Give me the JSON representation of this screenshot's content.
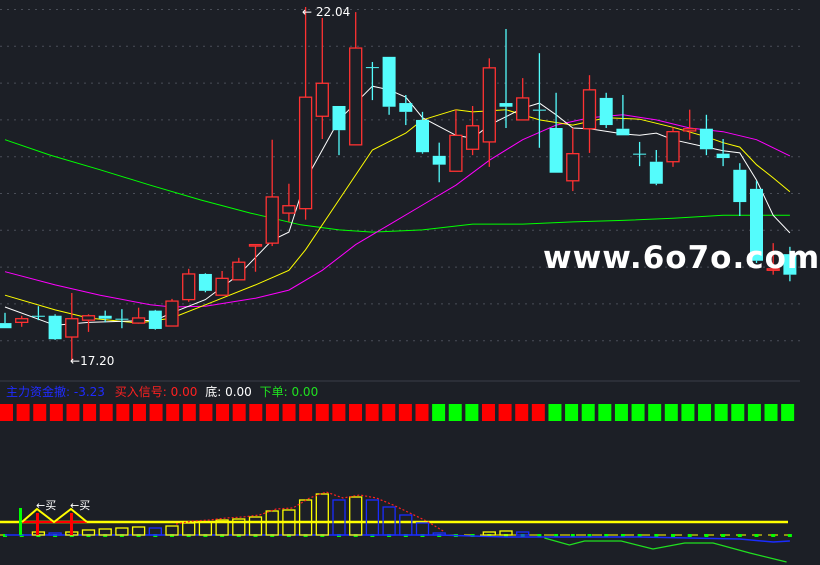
{
  "colors": {
    "background": "#1c1f26",
    "up": "#ff3232",
    "down": "#54fcfc",
    "ma5": "#ffffff",
    "ma10": "#ffff00",
    "ma20": "#ff00ff",
    "ma60": "#00ff00",
    "grid": "#4a4e58"
  },
  "price_labels": {
    "high": "22.04",
    "low": "17.20",
    "high_arrow": "←",
    "low_arrow": "←"
  },
  "watermark": "www.6o7o.com",
  "indicator_legend": {
    "fund_withdraw_label": "主力资金撤:",
    "fund_withdraw_value": "-3.23",
    "buy_signal_label": "买入信号:",
    "buy_signal_value": "0.00",
    "bottom_label": "底:",
    "bottom_value": "0.00",
    "order_label": "下单:",
    "order_value": "0.00"
  },
  "buy_marks": [
    "买",
    "买"
  ],
  "chart_data": {
    "type": "candlestick",
    "candles": [
      [
        17.73,
        17.87,
        17.66,
        17.66
      ],
      [
        17.74,
        17.83,
        17.68,
        17.79
      ],
      [
        17.83,
        17.96,
        17.77,
        17.82
      ],
      [
        17.83,
        17.85,
        17.5,
        17.51
      ],
      [
        17.54,
        18.14,
        17.2,
        17.79
      ],
      [
        17.77,
        17.85,
        17.61,
        17.83
      ],
      [
        17.83,
        17.9,
        17.74,
        17.79
      ],
      [
        17.79,
        17.92,
        17.66,
        17.78
      ],
      [
        17.73,
        17.94,
        17.73,
        17.8
      ],
      [
        17.9,
        17.91,
        17.64,
        17.65
      ],
      [
        17.69,
        18.06,
        17.69,
        18.03
      ],
      [
        18.05,
        18.47,
        18.02,
        18.4
      ],
      [
        18.4,
        18.41,
        18.15,
        18.17
      ],
      [
        18.11,
        18.44,
        18.11,
        18.34
      ],
      [
        18.32,
        18.62,
        18.32,
        18.56
      ],
      [
        18.78,
        18.8,
        18.43,
        18.8
      ],
      [
        18.82,
        20.23,
        18.78,
        19.45
      ],
      [
        19.23,
        19.63,
        19.11,
        19.33
      ],
      [
        19.29,
        22.04,
        19.14,
        20.81
      ],
      [
        20.55,
        21.89,
        20.24,
        21.0
      ],
      [
        20.69,
        20.69,
        20.02,
        20.36
      ],
      [
        20.16,
        21.97,
        20.16,
        21.48
      ],
      [
        21.22,
        21.29,
        20.77,
        21.21
      ],
      [
        21.36,
        21.36,
        20.57,
        20.68
      ],
      [
        20.73,
        20.84,
        20.43,
        20.61
      ],
      [
        20.5,
        20.61,
        20.04,
        20.06
      ],
      [
        20.01,
        20.19,
        19.65,
        19.89
      ],
      [
        19.8,
        20.64,
        19.8,
        20.29
      ],
      [
        20.1,
        20.69,
        20.02,
        20.42
      ],
      [
        20.2,
        21.34,
        19.86,
        21.21
      ],
      [
        20.73,
        21.74,
        20.39,
        20.68
      ],
      [
        20.5,
        21.07,
        20.5,
        20.8
      ],
      [
        20.64,
        21.41,
        20.12,
        20.63
      ],
      [
        20.39,
        20.87,
        19.78,
        19.78
      ],
      [
        19.67,
        20.39,
        19.53,
        20.04
      ],
      [
        20.38,
        21.11,
        20.05,
        20.91
      ],
      [
        20.8,
        20.87,
        20.39,
        20.43
      ],
      [
        20.38,
        20.84,
        20.29,
        20.29
      ],
      [
        20.04,
        20.2,
        19.87,
        20.03
      ],
      [
        19.93,
        20.09,
        19.61,
        19.63
      ],
      [
        19.93,
        20.4,
        19.86,
        20.34
      ],
      [
        20.35,
        20.64,
        20.23,
        20.38
      ],
      [
        20.38,
        20.57,
        20.02,
        20.1
      ],
      [
        20.04,
        20.24,
        19.87,
        19.98
      ],
      [
        19.82,
        19.91,
        19.19,
        19.38
      ],
      [
        19.56,
        19.67,
        18.55,
        18.58
      ],
      [
        18.45,
        18.82,
        18.39,
        18.47
      ],
      [
        18.67,
        18.77,
        18.3,
        18.39
      ]
    ],
    "moving_averages": {
      "ma5": [
        [
          0,
          17.95
        ],
        [
          3,
          17.7
        ],
        [
          5,
          17.74
        ],
        [
          9,
          17.77
        ],
        [
          10,
          17.87
        ],
        [
          12,
          18.05
        ],
        [
          14,
          18.39
        ],
        [
          16,
          18.86
        ],
        [
          17,
          18.97
        ],
        [
          18,
          19.68
        ],
        [
          20,
          20.5
        ],
        [
          22,
          20.96
        ],
        [
          23,
          20.91
        ],
        [
          24,
          20.81
        ],
        [
          25,
          20.53
        ],
        [
          27,
          20.29
        ],
        [
          28,
          20.25
        ],
        [
          29,
          20.43
        ],
        [
          31,
          20.66
        ],
        [
          32,
          20.73
        ],
        [
          33,
          20.57
        ],
        [
          34,
          20.39
        ],
        [
          35,
          20.38
        ],
        [
          37,
          20.31
        ],
        [
          38,
          20.29
        ],
        [
          39,
          20.32
        ],
        [
          40,
          20.23
        ],
        [
          42,
          20.13
        ],
        [
          43,
          20.08
        ],
        [
          44,
          20.05
        ],
        [
          45,
          19.68
        ],
        [
          46,
          19.2
        ],
        [
          47,
          18.96
        ]
      ],
      "ma10": [
        [
          0,
          18.11
        ],
        [
          3,
          17.91
        ],
        [
          5,
          17.8
        ],
        [
          8,
          17.73
        ],
        [
          10,
          17.8
        ],
        [
          12,
          17.98
        ],
        [
          15,
          18.25
        ],
        [
          17,
          18.45
        ],
        [
          18,
          18.73
        ],
        [
          20,
          19.41
        ],
        [
          22,
          20.09
        ],
        [
          24,
          20.32
        ],
        [
          25,
          20.5
        ],
        [
          27,
          20.64
        ],
        [
          28,
          20.61
        ],
        [
          30,
          20.64
        ],
        [
          32,
          20.5
        ],
        [
          34,
          20.43
        ],
        [
          36,
          20.53
        ],
        [
          38,
          20.51
        ],
        [
          40,
          20.4
        ],
        [
          42,
          20.27
        ],
        [
          43,
          20.19
        ],
        [
          44,
          20.13
        ],
        [
          45,
          19.89
        ],
        [
          46,
          19.71
        ],
        [
          47,
          19.52
        ]
      ],
      "ma20": [
        [
          0,
          18.43
        ],
        [
          3,
          18.25
        ],
        [
          5.7,
          18.11
        ],
        [
          8.7,
          17.98
        ],
        [
          10,
          17.95
        ],
        [
          12,
          17.96
        ],
        [
          15,
          18.07
        ],
        [
          17,
          18.18
        ],
        [
          19,
          18.45
        ],
        [
          21,
          18.8
        ],
        [
          23,
          19.07
        ],
        [
          25,
          19.34
        ],
        [
          27,
          19.61
        ],
        [
          29,
          19.95
        ],
        [
          31,
          20.23
        ],
        [
          33,
          20.43
        ],
        [
          35,
          20.53
        ],
        [
          37,
          20.57
        ],
        [
          39,
          20.5
        ],
        [
          41,
          20.39
        ],
        [
          43,
          20.34
        ],
        [
          45,
          20.23
        ],
        [
          47,
          20.01
        ]
      ],
      "ma60": [
        [
          0,
          20.23
        ],
        [
          2.7,
          20.02
        ],
        [
          5.7,
          19.82
        ],
        [
          8.7,
          19.61
        ],
        [
          11.7,
          19.41
        ],
        [
          14.7,
          19.23
        ],
        [
          17.7,
          19.07
        ],
        [
          20,
          19.0
        ],
        [
          22,
          18.97
        ],
        [
          25,
          19.0
        ],
        [
          28,
          19.08
        ],
        [
          31,
          19.08
        ],
        [
          34,
          19.11
        ],
        [
          37,
          19.13
        ],
        [
          40,
          19.16
        ],
        [
          43,
          19.2
        ],
        [
          45,
          19.2
        ],
        [
          47,
          19.2
        ]
      ]
    },
    "signal_row": [
      "red",
      "red",
      "red",
      "red",
      "red",
      "red",
      "red",
      "red",
      "red",
      "red",
      "red",
      "red",
      "red",
      "red",
      "red",
      "red",
      "red",
      "red",
      "red",
      "red",
      "red",
      "red",
      "red",
      "red",
      "red",
      "red",
      "green",
      "green",
      "green",
      "red",
      "red",
      "red",
      "red",
      "green",
      "green",
      "green",
      "green",
      "green",
      "green",
      "green",
      "green",
      "green",
      "green",
      "green",
      "green",
      "green",
      "green",
      "green"
    ],
    "indicator": {
      "threshold": 13,
      "bars": [
        [
          2,
          3,
          "yellow"
        ],
        [
          3,
          2,
          "blue"
        ],
        [
          4,
          3,
          "yellow"
        ],
        [
          5,
          5,
          "yellow"
        ],
        [
          6,
          6,
          "yellow"
        ],
        [
          7,
          7,
          "yellow"
        ],
        [
          8,
          8,
          "yellow"
        ],
        [
          9,
          7,
          "blue"
        ],
        [
          10,
          9,
          "yellow"
        ],
        [
          11,
          12,
          "yellow"
        ],
        [
          12,
          13,
          "yellow"
        ],
        [
          13,
          15,
          "yellow"
        ],
        [
          14,
          16,
          "yellow"
        ],
        [
          15,
          18,
          "yellow"
        ],
        [
          16,
          24,
          "yellow"
        ],
        [
          17,
          25,
          "yellow"
        ],
        [
          18,
          35,
          "yellow"
        ],
        [
          19,
          41,
          "yellow"
        ],
        [
          20,
          35,
          "blue"
        ],
        [
          21,
          38,
          "yellow"
        ],
        [
          22,
          35,
          "blue"
        ],
        [
          23,
          28,
          "blue"
        ],
        [
          24,
          20,
          "blue"
        ],
        [
          25,
          12,
          "blue"
        ],
        [
          26,
          2,
          "blue"
        ],
        [
          29,
          3,
          "yellow"
        ],
        [
          30,
          4,
          "yellow"
        ],
        [
          31,
          3,
          "blue"
        ]
      ],
      "green_line": [
        [
          32.3,
          -3
        ],
        [
          33.8,
          -10
        ],
        [
          34.7,
          -6
        ],
        [
          36.9,
          -6
        ],
        [
          38.8,
          -14
        ],
        [
          40.7,
          -8
        ],
        [
          42.4,
          -8
        ],
        [
          44.6,
          -18
        ],
        [
          46.8,
          -27
        ]
      ],
      "blue_line": [
        [
          0,
          0
        ],
        [
          26,
          0
        ],
        [
          30,
          -2
        ],
        [
          38,
          -2
        ],
        [
          44,
          -4
        ],
        [
          46,
          -7
        ],
        [
          47,
          -6
        ]
      ]
    }
  }
}
